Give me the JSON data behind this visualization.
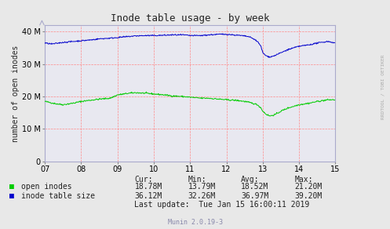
{
  "title": "Inode table usage - by week",
  "ylabel": "number of open inodes",
  "xlabel_ticks": [
    "07",
    "08",
    "09",
    "10",
    "11",
    "12",
    "13",
    "14",
    "15"
  ],
  "xlim": [
    0,
    8
  ],
  "ylim": [
    0,
    42000000
  ],
  "yticks": [
    0,
    10000000,
    20000000,
    30000000,
    40000000
  ],
  "ytick_labels": [
    "0",
    "10",
    "20",
    "30",
    "40"
  ],
  "grid_color": "#ff9999",
  "fig_bg_color": "#e8e8e8",
  "plot_bg_color": "#e8e8f0",
  "open_inodes_color": "#00cc00",
  "inode_table_color": "#0000cc",
  "legend_labels": [
    "open inodes",
    "inode table size"
  ],
  "stats_header": [
    "Cur:",
    "Min:",
    "Avg:",
    "Max:"
  ],
  "stats": [
    [
      "18.78M",
      "13.79M",
      "18.52M",
      "21.20M"
    ],
    [
      "36.12M",
      "32.26M",
      "36.97M",
      "39.20M"
    ]
  ],
  "last_update": "Last update:  Tue Jan 15 16:00:11 2019",
  "munin_version": "Munin 2.0.19-3",
  "watermark": "RRDTOOL / TOBI OETIKER",
  "open_inodes_pts_x": [
    0,
    0.3,
    0.5,
    0.8,
    1.0,
    1.2,
    1.5,
    1.8,
    2.0,
    2.3,
    2.5,
    2.8,
    3.0,
    3.3,
    3.5,
    3.8,
    4.0,
    4.3,
    4.5,
    4.7,
    5.0,
    5.3,
    5.5,
    5.7,
    5.85,
    5.95,
    6.0,
    6.1,
    6.2,
    6.35,
    6.5,
    6.7,
    7.0,
    7.3,
    7.5,
    7.8,
    8.0
  ],
  "open_inodes_pts_y": [
    18.5,
    17.8,
    17.5,
    18.0,
    18.5,
    18.8,
    19.2,
    19.5,
    20.5,
    21.0,
    21.2,
    21.0,
    20.8,
    20.5,
    20.2,
    20.0,
    19.8,
    19.5,
    19.5,
    19.3,
    19.0,
    18.8,
    18.5,
    18.0,
    17.5,
    16.5,
    15.5,
    14.5,
    14.0,
    14.5,
    15.5,
    16.5,
    17.5,
    18.0,
    18.5,
    19.0,
    19.0
  ],
  "inode_table_pts_x": [
    0,
    0.2,
    0.5,
    0.8,
    1.0,
    1.3,
    1.5,
    1.8,
    2.0,
    2.3,
    2.5,
    2.8,
    3.0,
    3.3,
    3.5,
    3.8,
    4.0,
    4.3,
    4.5,
    4.8,
    5.0,
    5.2,
    5.4,
    5.6,
    5.75,
    5.85,
    5.95,
    6.0,
    6.1,
    6.2,
    6.3,
    6.5,
    6.7,
    7.0,
    7.3,
    7.5,
    7.8,
    8.0
  ],
  "inode_table_pts_y": [
    36.5,
    36.2,
    36.7,
    37.0,
    37.2,
    37.5,
    37.8,
    38.0,
    38.2,
    38.5,
    38.7,
    38.8,
    38.8,
    38.9,
    39.0,
    39.0,
    38.8,
    38.8,
    39.0,
    39.2,
    39.2,
    39.0,
    38.8,
    38.5,
    37.8,
    37.0,
    35.5,
    33.5,
    32.5,
    32.2,
    32.5,
    33.5,
    34.5,
    35.5,
    36.0,
    36.5,
    37.0,
    36.5
  ]
}
